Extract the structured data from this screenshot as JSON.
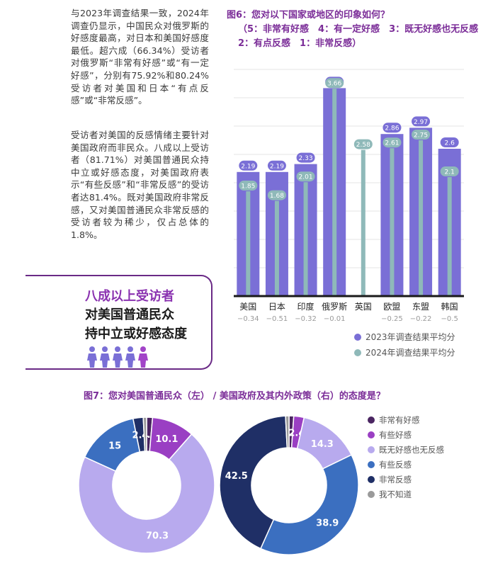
{
  "text": {
    "p1": "与2023年调查结果一致，2024年调查仍显示，中国民众对俄罗斯的好感度最高，对日本和美国好感度最低。超六成（66.34%）受访者对俄罗斯“非常有好感”或“有一定好感”，分别有75.92%和80.24%受访者对美国和日本“有点反感”或“非常反感”。",
    "p2": "受访者对美国的反感情绪主要针对美国政府而非民众。八成以上受访者（81.71%）对美国普通民众持中立或好感态度，对美国政府表示“有些反感”和“非常反感”的受访者达81.4%。既对美国政府非常反感，又对美国普通民众非常反感的受访者较为稀少，仅占总体的1.8%。"
  },
  "callout": {
    "line1": "八成以上受访者",
    "line2": "对美国普通民众",
    "line3": "持中立或好感态度"
  },
  "fig6": {
    "title": "图6：您对以下国家或地区的印象如何？",
    "line2": "（5：非常有好感　4：有一定好感　3：既无好感也无反感",
    "line3": "2：有点反感　1：非常反感）"
  },
  "fig7": {
    "title": "图7：您对美国普通民众（左） / 美国政府及其内外政策（右）的态度是？"
  },
  "colors": {
    "bar2023": "#7a6fd6",
    "bar2024": "#8fb9b9",
    "purple_title": "#7b2d98"
  },
  "chart_data": [
    {
      "type": "bar",
      "categories": [
        "美国",
        "日本",
        "印度",
        "俄罗斯",
        "英国",
        "欧盟",
        "东盟",
        "韩国"
      ],
      "change_labels": [
        "−0.34",
        "−0.51",
        "−0.32",
        "−0.01",
        "",
        "−0.25",
        "−0.22",
        "−0.5"
      ],
      "series": [
        {
          "name": "2023年调查结果平均分",
          "values": [
            2.19,
            2.19,
            2.33,
            3.67,
            null,
            2.86,
            2.97,
            2.6
          ]
        },
        {
          "name": "2024年调查结果平均分",
          "values": [
            1.85,
            1.68,
            2.01,
            3.66,
            2.58,
            2.61,
            2.75,
            2.1
          ]
        }
      ],
      "ylim": [
        0,
        4
      ],
      "grid": true,
      "legend": "bottom-right"
    },
    {
      "type": "pie",
      "style": "donut",
      "labels": [
        "非常有好感",
        "有些好感",
        "既无好感也无反感",
        "有些反感",
        "非常反感",
        "我不知道"
      ],
      "left_values": [
        1.4,
        10.1,
        70.3,
        15,
        2.4,
        0.8
      ],
      "right_values": [
        1.1,
        2.4,
        14.3,
        38.9,
        42.5,
        0.8
      ],
      "left_value_labels": [
        "1.4",
        "10.1",
        "70.3",
        "15",
        "2.4",
        ""
      ],
      "right_value_labels": [
        "1.1",
        "2.4",
        "14.3",
        "38.9",
        "42.5",
        ""
      ],
      "colors": [
        "#4a2561",
        "#9a3fc3",
        "#b8aaee",
        "#3b6fc0",
        "#1f2f66",
        "#9a9a9a"
      ],
      "legend": "right"
    }
  ]
}
